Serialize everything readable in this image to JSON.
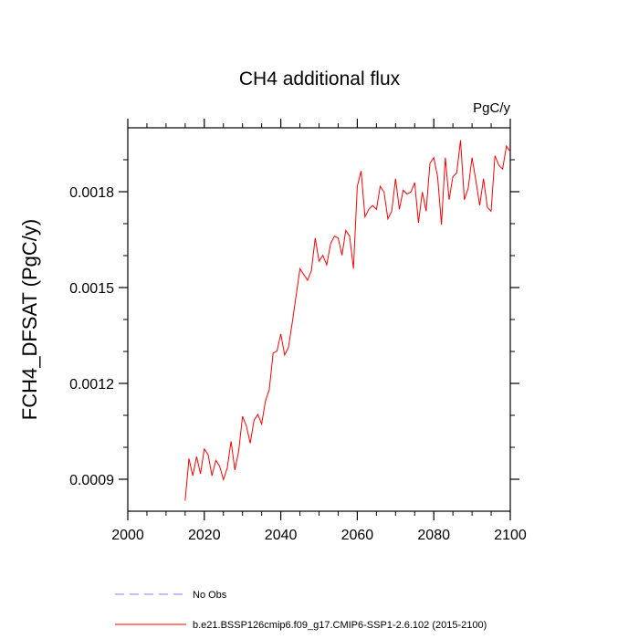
{
  "chart_data": {
    "type": "line",
    "title": "CH4 additional flux",
    "units_label": "PgC/y",
    "xlabel": "",
    "ylabel": "FCH4_DFSAT  (PgC/y)",
    "xlim": [
      2000,
      2100
    ],
    "ylim": [
      0.0008,
      0.002
    ],
    "x_ticks": [
      2000,
      2020,
      2040,
      2060,
      2080,
      2100
    ],
    "x_tick_labels": [
      "2000",
      "2020",
      "2040",
      "2060",
      "2080",
      "2100"
    ],
    "y_ticks": [
      0.0009,
      0.0012,
      0.0015,
      0.0018
    ],
    "y_tick_labels": [
      "0.0009",
      "0.0012",
      "0.0015",
      "0.0018"
    ],
    "grid": false,
    "legend_position": "bottom",
    "series": [
      {
        "name": "No Obs",
        "style": "dashed",
        "color": "#8080ff",
        "x": [],
        "values": []
      },
      {
        "name": "b.e21.BSSP126cmip6.f09_g17.CMIP6-SSP1-2.6.102 (2015-2100)",
        "style": "solid",
        "color": "#ff0000",
        "x": [
          2015,
          2016,
          2017,
          2018,
          2019,
          2020,
          2021,
          2022,
          2023,
          2024,
          2025,
          2026,
          2027,
          2028,
          2029,
          2030,
          2031,
          2032,
          2033,
          2034,
          2035,
          2036,
          2037,
          2038,
          2039,
          2040,
          2041,
          2042,
          2043,
          2044,
          2045,
          2046,
          2047,
          2048,
          2049,
          2050,
          2051,
          2052,
          2053,
          2054,
          2055,
          2056,
          2057,
          2058,
          2059,
          2060,
          2061,
          2062,
          2063,
          2064,
          2065,
          2066,
          2067,
          2068,
          2069,
          2070,
          2071,
          2072,
          2073,
          2074,
          2075,
          2076,
          2077,
          2078,
          2079,
          2080,
          2081,
          2082,
          2083,
          2084,
          2085,
          2086,
          2087,
          2088,
          2089,
          2090,
          2091,
          2092,
          2093,
          2094,
          2095,
          2096,
          2097,
          2098,
          2099,
          2100
        ],
        "values": [
          0.000833,
          0.000965,
          0.000911,
          0.000971,
          0.000917,
          0.000995,
          0.000977,
          0.000911,
          0.000959,
          0.000941,
          0.000899,
          0.000935,
          0.001019,
          0.000929,
          0.000989,
          0.001097,
          0.001067,
          0.001013,
          0.001085,
          0.001103,
          0.001073,
          0.001145,
          0.001181,
          0.001295,
          0.001301,
          0.001355,
          0.001289,
          0.001313,
          0.001391,
          0.001475,
          0.001559,
          0.001541,
          0.001523,
          0.001553,
          0.001655,
          0.001583,
          0.001601,
          0.001571,
          0.001637,
          0.001661,
          0.001655,
          0.001601,
          0.001679,
          0.001661,
          0.001559,
          0.001817,
          0.001865,
          0.001721,
          0.001745,
          0.001757,
          0.001745,
          0.001817,
          0.001799,
          0.001715,
          0.001739,
          0.001841,
          0.001745,
          0.001805,
          0.001793,
          0.001799,
          0.001829,
          0.001703,
          0.001799,
          0.001739,
          0.001889,
          0.001907,
          0.001847,
          0.001697,
          0.001907,
          0.001775,
          0.001847,
          0.001859,
          0.001961,
          0.001775,
          0.001811,
          0.001907,
          0.001835,
          0.001757,
          0.001841,
          0.001751,
          0.001739,
          0.001913,
          0.001883,
          0.001871,
          0.001943,
          0.001925
        ]
      }
    ]
  }
}
